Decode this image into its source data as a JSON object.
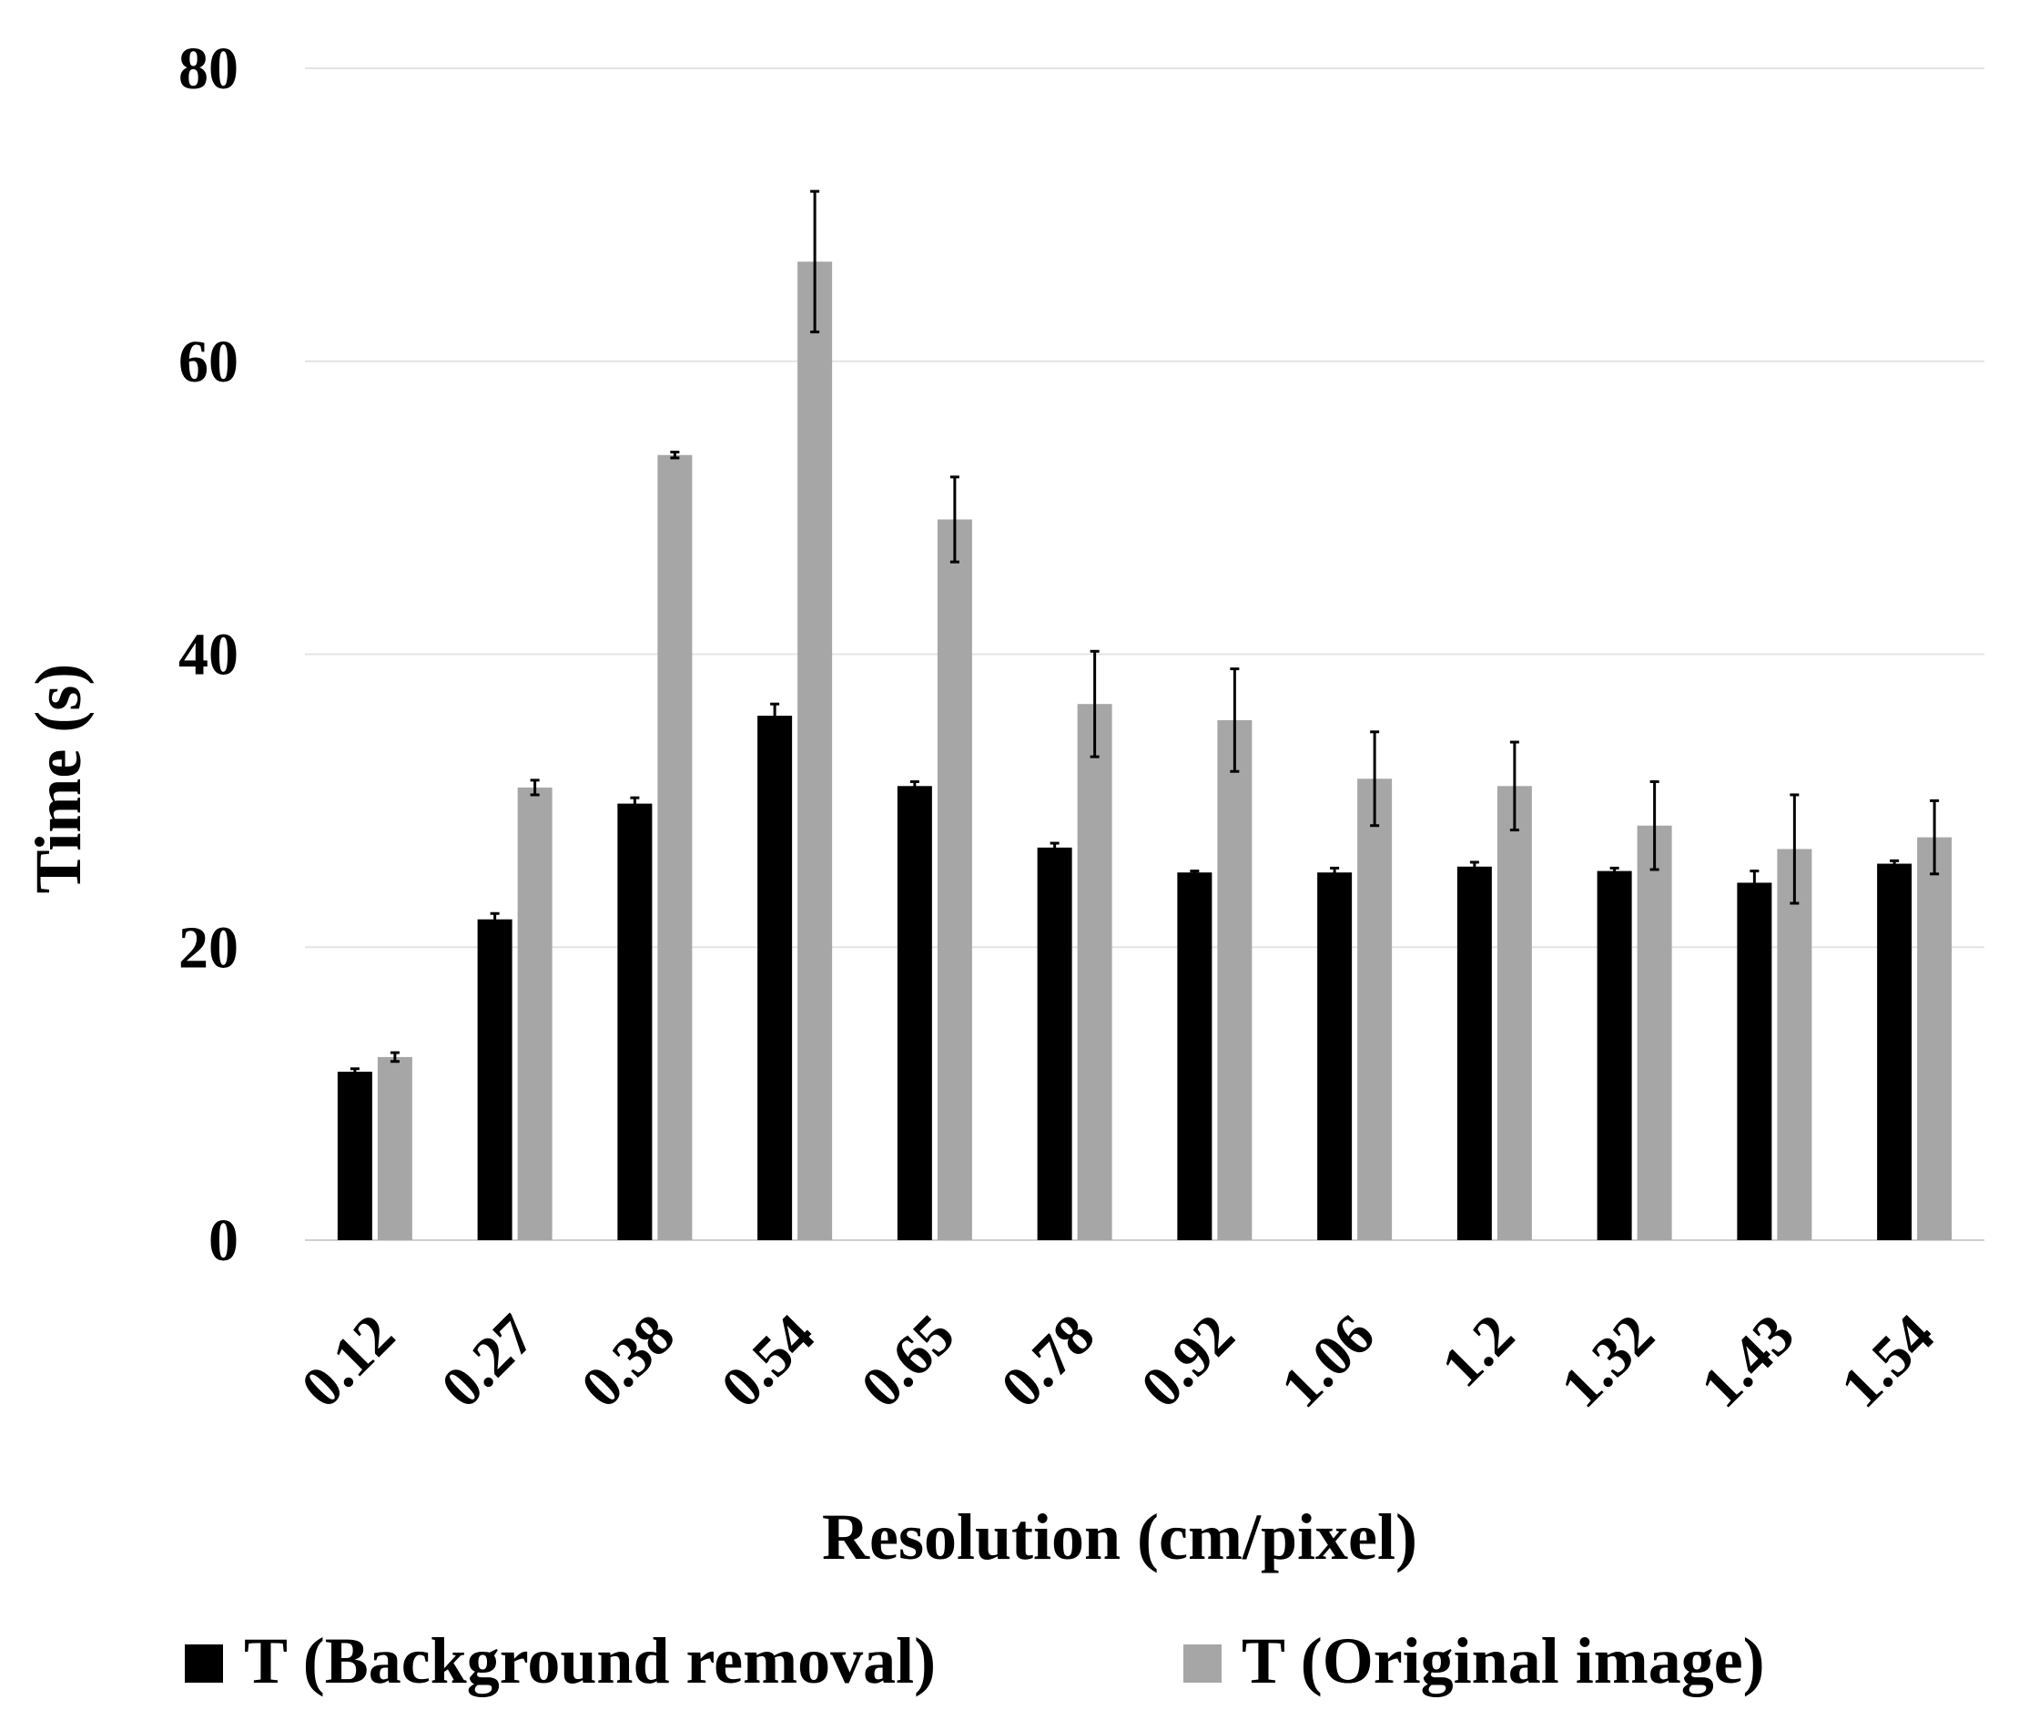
{
  "chart_data": {
    "type": "bar",
    "xlabel": "Resolution (cm/pixel)",
    "ylabel": "Time (s)",
    "ylim": [
      0,
      80
    ],
    "yticks": [
      0,
      20,
      40,
      60,
      80
    ],
    "grid": true,
    "legend_position": "bottom",
    "categories": [
      "0.12",
      "0.27",
      "0.38",
      "0.54",
      "0.65",
      "0.78",
      "0.92",
      "1.06",
      "1.2",
      "1.32",
      "1.43",
      "1.54"
    ],
    "series": [
      {
        "name": "T (Background removal)",
        "color": "#000000",
        "values": [
          11.5,
          21.9,
          29.8,
          35.8,
          31.0,
          26.8,
          25.1,
          25.1,
          25.5,
          25.2,
          24.4,
          25.7
        ],
        "errors": [
          0.2,
          0.4,
          0.4,
          0.8,
          0.3,
          0.3,
          0.1,
          0.3,
          0.3,
          0.2,
          0.8,
          0.2
        ]
      },
      {
        "name": "T (Original image)",
        "color": "#a6a6a6",
        "values": [
          12.5,
          30.9,
          53.6,
          66.8,
          49.2,
          36.6,
          35.5,
          31.5,
          31.0,
          28.3,
          26.7,
          27.5
        ],
        "errors": [
          0.3,
          0.5,
          0.2,
          4.8,
          2.9,
          3.6,
          3.5,
          3.2,
          3.0,
          3.0,
          3.7,
          2.5
        ]
      }
    ]
  }
}
